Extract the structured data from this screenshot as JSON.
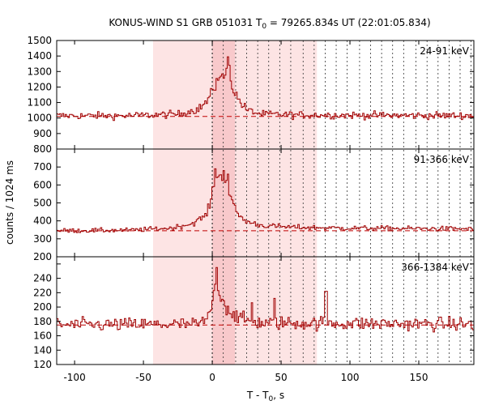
{
  "chart_data": {
    "type": "line",
    "title": "KONUS-WIND S1 GRB 051031 T",
    "title_sub": "0",
    "title_rest": " = 79265.834s UT (22:01:05.834)",
    "xlabel": "T - T",
    "xlabel_sub": "0",
    "xlabel_rest": ", s",
    "ylabel": "counts / 1024 ms",
    "xlim": [
      -113,
      190
    ],
    "xticks": [
      -100,
      -50,
      0,
      50,
      100,
      150
    ],
    "colors": {
      "trace": "#a00000",
      "background_line": "#c00000",
      "shade_light": "#fde4e4",
      "shade_dark": "#f8c9cb",
      "dotted": "#333333"
    },
    "shaded_interval": [
      -43,
      76
    ],
    "peak_interval": [
      0,
      16.5
    ],
    "dotted_lines_x": [
      0,
      8,
      17,
      25,
      33,
      41,
      49,
      57,
      66,
      74,
      82,
      90,
      98,
      107,
      115,
      123,
      131,
      139,
      148,
      156,
      164,
      172,
      180,
      188
    ],
    "panels": [
      {
        "band": "24-91 keV",
        "ylim": [
          800,
          1500
        ],
        "yticks": [
          800,
          900,
          1000,
          1100,
          1200,
          1300,
          1400,
          1500
        ],
        "background": 1010,
        "profile": [
          [
            -113,
            1015
          ],
          [
            -60,
            1015
          ],
          [
            -25,
            1025
          ],
          [
            -10,
            1060
          ],
          [
            -3,
            1120
          ],
          [
            0,
            1180
          ],
          [
            3,
            1220
          ],
          [
            7,
            1260
          ],
          [
            9,
            1280
          ],
          [
            11,
            1300
          ],
          [
            13,
            1230
          ],
          [
            16,
            1160
          ],
          [
            20,
            1100
          ],
          [
            25,
            1050
          ],
          [
            35,
            1025
          ],
          [
            60,
            1020
          ],
          [
            190,
            1015
          ]
        ],
        "spikes": [
          [
            10.5,
            1395
          ],
          [
            12,
            1340
          ],
          [
            5,
            1260
          ],
          [
            3,
            1255
          ]
        ],
        "noise": 22
      },
      {
        "band": "91-366 keV",
        "ylim": [
          200,
          800
        ],
        "yticks": [
          200,
          300,
          400,
          500,
          600,
          700,
          800
        ],
        "background": 345,
        "profile": [
          [
            -113,
            345
          ],
          [
            -60,
            348
          ],
          [
            -30,
            360
          ],
          [
            -15,
            385
          ],
          [
            -5,
            430
          ],
          [
            -1,
            520
          ],
          [
            0,
            600
          ],
          [
            3,
            650
          ],
          [
            6,
            640
          ],
          [
            9,
            640
          ],
          [
            12,
            560
          ],
          [
            15,
            480
          ],
          [
            20,
            420
          ],
          [
            25,
            395
          ],
          [
            35,
            375
          ],
          [
            55,
            365
          ],
          [
            90,
            360
          ],
          [
            190,
            355
          ]
        ],
        "spikes": [
          [
            2,
            690
          ],
          [
            8,
            680
          ],
          [
            10.5,
            660
          ]
        ],
        "noise": 12
      },
      {
        "band": "366-1384 keV",
        "ylim": [
          120,
          270
        ],
        "yticks": [
          120,
          140,
          160,
          180,
          200,
          220,
          240,
          260
        ],
        "background": 175,
        "profile": [
          [
            -113,
            175
          ],
          [
            -10,
            176
          ],
          [
            -3,
            185
          ],
          [
            0,
            210
          ],
          [
            2,
            245
          ],
          [
            4,
            230
          ],
          [
            7,
            210
          ],
          [
            10,
            200
          ],
          [
            15,
            190
          ],
          [
            22,
            182
          ],
          [
            35,
            178
          ],
          [
            190,
            176
          ]
        ],
        "spikes": [
          [
            2.5,
            255
          ],
          [
            28,
            206
          ],
          [
            45,
            212
          ],
          [
            82,
            222
          ]
        ],
        "noise": 9
      }
    ]
  }
}
